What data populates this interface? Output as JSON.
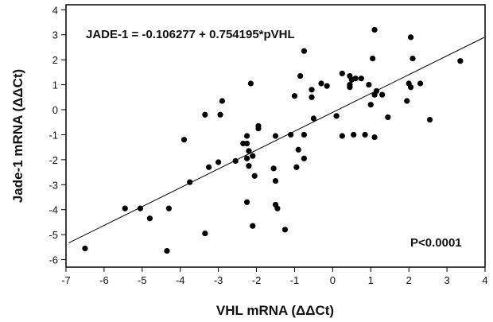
{
  "chart_data": {
    "type": "scatter",
    "title": "",
    "xlabel": "VHL mRNA (ΔΔCt)",
    "ylabel": "Jade-1 mRNA (ΔΔCt)",
    "xlim": [
      -7,
      4
    ],
    "ylim": [
      -6.3,
      4.2
    ],
    "xticks": [
      "-7",
      "-6",
      "-5",
      "-4",
      "-3",
      "-2",
      "-1",
      "0",
      "1",
      "2",
      "3",
      "4"
    ],
    "yticks": [
      "4",
      "3",
      "2",
      "1",
      "0",
      "-1",
      "-2",
      "-3",
      "-4",
      "-5",
      "-6"
    ],
    "grid": false,
    "annotations": {
      "equation": "JADE-1 = -0.106277 + 0.754195*pVHL",
      "pvalue": "P<0.0001"
    },
    "regression": {
      "intercept": -0.106277,
      "slope": 0.754195
    },
    "points": [
      [
        -6.5,
        -5.55
      ],
      [
        -5.45,
        -3.95
      ],
      [
        -5.05,
        -3.95
      ],
      [
        -4.8,
        -4.35
      ],
      [
        -4.35,
        -5.65
      ],
      [
        -4.3,
        -3.95
      ],
      [
        -3.9,
        -1.2
      ],
      [
        -3.75,
        -2.9
      ],
      [
        -3.35,
        -4.95
      ],
      [
        -3.35,
        -0.2
      ],
      [
        -3.25,
        -2.3
      ],
      [
        -3.0,
        -2.1
      ],
      [
        -2.95,
        -0.2
      ],
      [
        -2.9,
        0.35
      ],
      [
        -2.55,
        -2.05
      ],
      [
        -2.35,
        -1.35
      ],
      [
        -2.25,
        -1.05
      ],
      [
        -2.25,
        -1.35
      ],
      [
        -2.2,
        -1.65
      ],
      [
        -2.25,
        -1.95
      ],
      [
        -2.2,
        -2.25
      ],
      [
        -2.25,
        -3.7
      ],
      [
        -2.1,
        -1.85
      ],
      [
        -2.1,
        -4.65
      ],
      [
        -2.15,
        1.05
      ],
      [
        -2.05,
        -2.65
      ],
      [
        -1.95,
        -0.75
      ],
      [
        -1.95,
        -0.65
      ],
      [
        -1.55,
        -2.35
      ],
      [
        -1.5,
        -2.85
      ],
      [
        -1.5,
        -1.05
      ],
      [
        -1.5,
        -3.8
      ],
      [
        -1.45,
        -3.95
      ],
      [
        -1.25,
        -4.8
      ],
      [
        -1.1,
        -1.0
      ],
      [
        -1.0,
        0.55
      ],
      [
        -0.95,
        -2.3
      ],
      [
        -0.9,
        -1.6
      ],
      [
        -0.85,
        1.35
      ],
      [
        -0.75,
        2.35
      ],
      [
        -0.75,
        -1.95
      ],
      [
        -0.75,
        -1.0
      ],
      [
        -0.55,
        0.5
      ],
      [
        -0.55,
        0.8
      ],
      [
        -0.5,
        -0.35
      ],
      [
        -0.3,
        1.05
      ],
      [
        -0.15,
        0.95
      ],
      [
        0.1,
        -0.25
      ],
      [
        0.25,
        -1.05
      ],
      [
        0.25,
        1.45
      ],
      [
        0.45,
        1.35
      ],
      [
        0.45,
        1.0
      ],
      [
        0.45,
        0.9
      ],
      [
        0.5,
        1.2
      ],
      [
        0.55,
        -1.0
      ],
      [
        0.6,
        1.25
      ],
      [
        0.75,
        1.25
      ],
      [
        0.85,
        -1.0
      ],
      [
        0.95,
        1.0
      ],
      [
        1.0,
        0.2
      ],
      [
        1.05,
        2.05
      ],
      [
        1.1,
        0.6
      ],
      [
        1.1,
        -1.1
      ],
      [
        1.1,
        3.2
      ],
      [
        1.15,
        0.75
      ],
      [
        1.3,
        0.6
      ],
      [
        1.45,
        -0.3
      ],
      [
        1.95,
        0.35
      ],
      [
        2.0,
        1.05
      ],
      [
        2.05,
        2.9
      ],
      [
        2.05,
        0.9
      ],
      [
        2.1,
        2.05
      ],
      [
        2.3,
        1.05
      ],
      [
        2.55,
        -0.4
      ],
      [
        3.35,
        1.95
      ]
    ]
  }
}
